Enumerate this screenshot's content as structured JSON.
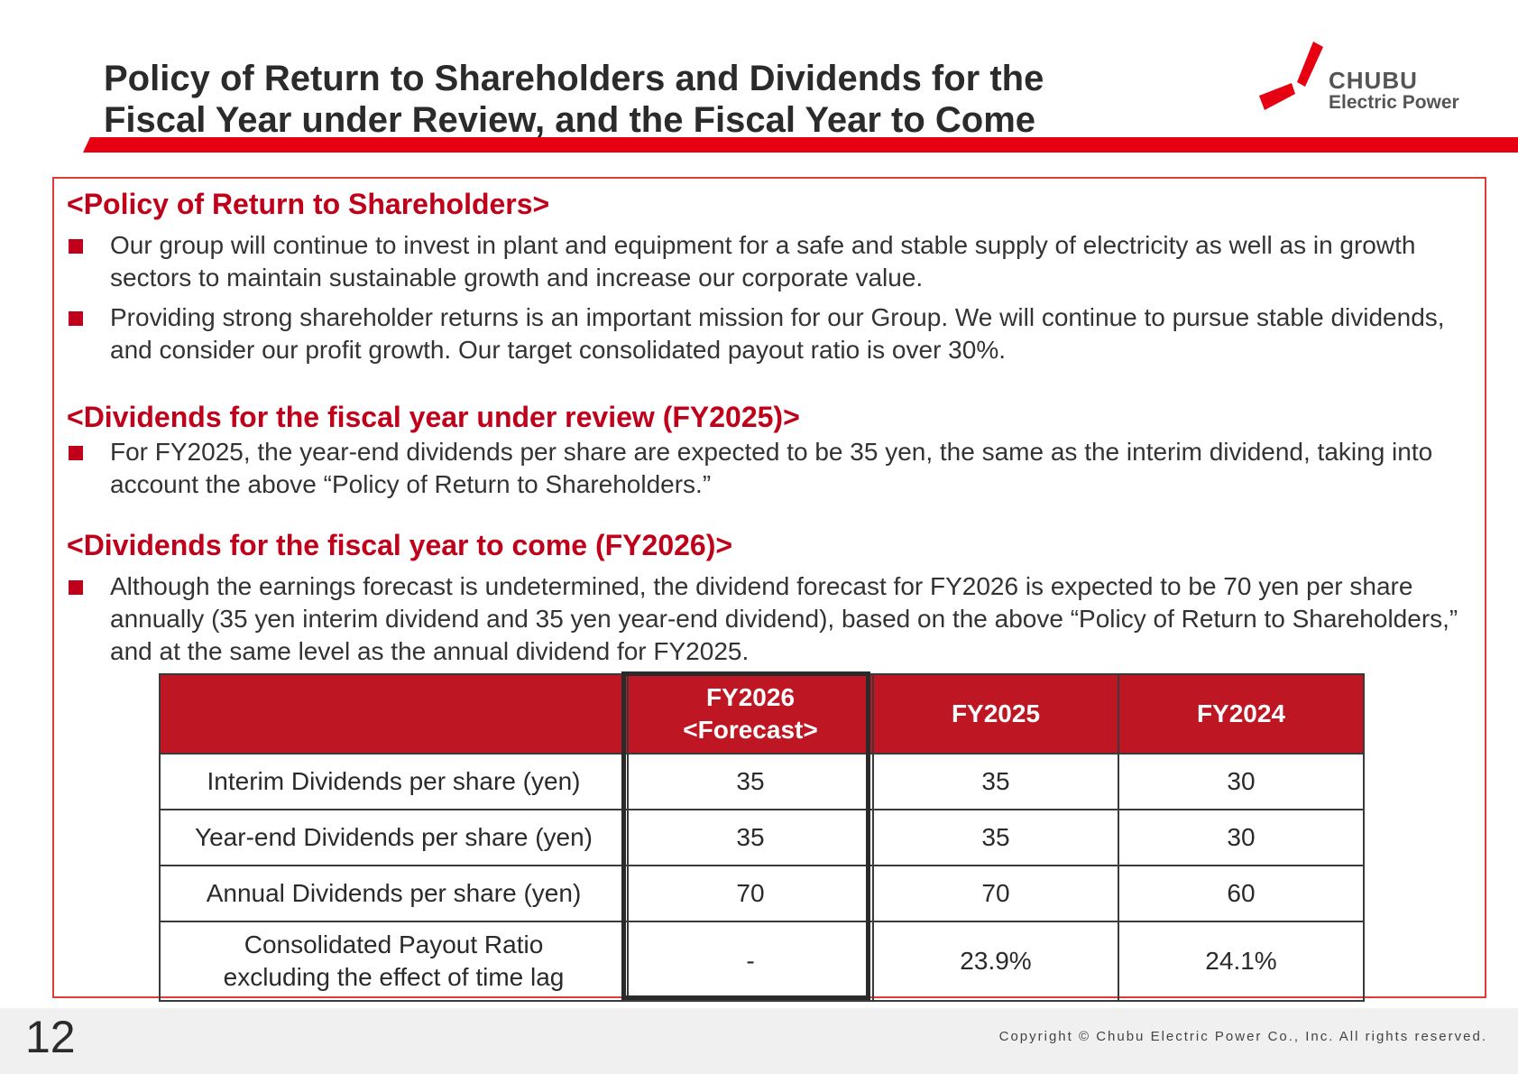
{
  "header": {
    "title_line1": "Policy of Return to Shareholders and Dividends for the",
    "title_line2": "Fiscal Year under Review, and the Fiscal Year to Come"
  },
  "logo": {
    "line1": "CHUBU",
    "line2": "Electric Power",
    "colors": {
      "red": "#e60012",
      "text": "#555555"
    }
  },
  "sections": {
    "policy": {
      "heading": "<Policy of Return to Shareholders>",
      "bullets": [
        "Our group will continue to invest in plant and equipment for a safe and stable supply of electricity as well as in growth sectors to maintain sustainable growth and increase our corporate value.",
        "Providing strong shareholder returns is an important mission for our Group. We will continue to pursue stable dividends, and consider our profit growth. Our target consolidated payout ratio is over 30%."
      ]
    },
    "fy2025": {
      "heading": "<Dividends for the fiscal year under review (FY2025)>",
      "bullets": [
        "For FY2025, the year-end dividends per share are expected to be 35 yen, the same as the interim dividend, taking into account the above “Policy of Return to Shareholders.”"
      ]
    },
    "fy2026": {
      "heading": "<Dividends for the fiscal year to come (FY2026)>",
      "bullets": [
        "Although the earnings forecast is undetermined, the dividend forecast for FY2026 is expected to be 70 yen per share annually (35 yen interim dividend and 35 yen year-end dividend), based on the above “Policy of Return to Shareholders,” and at the same level as the annual dividend for FY2025."
      ]
    }
  },
  "table": {
    "headers": [
      "",
      "FY2026",
      "<Forecast>",
      "FY2025",
      "FY2024"
    ],
    "rows": [
      {
        "label": "Interim Dividends per share (yen)",
        "values": [
          "35",
          "35",
          "30"
        ]
      },
      {
        "label": "Year-end Dividends per share (yen)",
        "values": [
          "35",
          "35",
          "30"
        ]
      },
      {
        "label": "Annual Dividends per share (yen)",
        "values": [
          "70",
          "70",
          "60"
        ]
      },
      {
        "label_line1": "Consolidated Payout Ratio",
        "label_line2": "excluding the effect of time lag",
        "values": [
          "-",
          "23.9%",
          "24.1%"
        ]
      }
    ],
    "header_color": "#be1622"
  },
  "footer": {
    "page_number": "12",
    "copyright": "Copyright © Chubu Electric Power Co., Inc. All rights reserved."
  },
  "colors": {
    "accent_red": "#c0001a",
    "bar_red": "#e60012",
    "box_border": "#e03a3a"
  }
}
